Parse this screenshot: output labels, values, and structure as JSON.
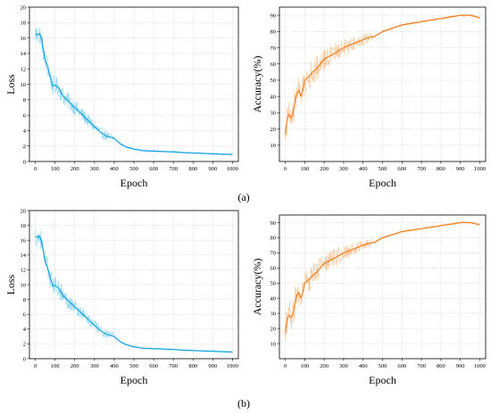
{
  "figure": {
    "panel_labels": [
      "(a)",
      "(b)"
    ]
  },
  "colors": {
    "loss": "#0b9ee3",
    "loss_light": "#8fd6f5",
    "accuracy": "#f07a18",
    "accuracy_light": "#fbc79a",
    "grid": "#c8c8c8"
  },
  "chart_data": [
    {
      "id": "a-loss",
      "type": "line",
      "xlabel": "Epoch",
      "ylabel": "Loss",
      "xlim": [
        -30,
        1030
      ],
      "ylim": [
        0,
        20
      ],
      "xticks": [
        0,
        100,
        200,
        300,
        400,
        500,
        600,
        700,
        800,
        900,
        1000
      ],
      "yticks": [
        0,
        2,
        4,
        6,
        8,
        10,
        12,
        14,
        16,
        18,
        20
      ],
      "grid": true,
      "series": [
        {
          "role": "smoothed",
          "x": [
            0,
            10,
            20,
            30,
            40,
            50,
            60,
            70,
            80,
            90,
            100,
            120,
            140,
            160,
            180,
            200,
            220,
            240,
            260,
            280,
            300,
            330,
            360,
            400,
            430,
            460,
            500,
            550,
            600,
            650,
            700,
            750,
            800,
            850,
            900,
            950,
            1000
          ],
          "values": [
            16.5,
            16.4,
            16.6,
            16.0,
            14.5,
            13.0,
            12.5,
            11.5,
            10.5,
            9.8,
            9.9,
            9.5,
            8.5,
            8.0,
            7.5,
            7.0,
            6.5,
            6.0,
            5.5,
            5.0,
            4.5,
            3.8,
            3.3,
            3.0,
            2.3,
            1.9,
            1.6,
            1.4,
            1.35,
            1.3,
            1.25,
            1.15,
            1.1,
            1.05,
            1.0,
            0.95,
            0.9
          ]
        }
      ]
    },
    {
      "id": "a-acc",
      "type": "line",
      "xlabel": "Epoch",
      "ylabel": "Accuracy(%)",
      "xlim": [
        -30,
        1030
      ],
      "ylim": [
        0,
        95
      ],
      "xticks": [
        0,
        100,
        200,
        300,
        400,
        500,
        600,
        700,
        800,
        900,
        1000
      ],
      "yticks": [
        10,
        20,
        30,
        40,
        50,
        60,
        70,
        80,
        90
      ],
      "grid": true,
      "series": [
        {
          "role": "smoothed",
          "x": [
            0,
            10,
            20,
            30,
            40,
            50,
            60,
            70,
            80,
            90,
            100,
            120,
            140,
            160,
            180,
            200,
            230,
            260,
            300,
            340,
            380,
            420,
            460,
            500,
            550,
            600,
            650,
            700,
            750,
            800,
            850,
            900,
            950,
            1000
          ],
          "values": [
            17,
            26,
            29,
            27,
            30,
            37,
            42,
            44,
            40,
            44,
            50,
            52,
            55,
            57,
            60,
            63,
            65,
            67,
            70,
            72,
            74,
            76,
            77,
            80,
            82,
            84,
            85,
            86,
            87,
            88,
            89,
            90,
            90,
            88.5
          ]
        }
      ]
    },
    {
      "id": "b-loss",
      "type": "line",
      "xlabel": "Epoch",
      "ylabel": "Loss",
      "xlim": [
        -30,
        1030
      ],
      "ylim": [
        0,
        20
      ],
      "xticks": [
        0,
        100,
        200,
        300,
        400,
        500,
        600,
        700,
        800,
        900,
        1000
      ],
      "yticks": [
        0,
        2,
        4,
        6,
        8,
        10,
        12,
        14,
        16,
        18,
        20
      ],
      "grid": true,
      "series": [
        {
          "role": "smoothed",
          "x": [
            0,
            10,
            20,
            30,
            40,
            50,
            60,
            70,
            80,
            90,
            100,
            120,
            140,
            160,
            180,
            200,
            220,
            240,
            260,
            280,
            300,
            330,
            360,
            400,
            430,
            460,
            500,
            550,
            600,
            650,
            700,
            750,
            800,
            850,
            900,
            950,
            1000
          ],
          "values": [
            16.5,
            16.4,
            16.6,
            16.0,
            14.5,
            13.0,
            12.5,
            11.5,
            10.5,
            9.8,
            9.9,
            9.5,
            8.5,
            8.0,
            7.5,
            7.0,
            6.5,
            6.0,
            5.5,
            5.0,
            4.5,
            3.8,
            3.3,
            3.0,
            2.3,
            1.9,
            1.6,
            1.4,
            1.35,
            1.3,
            1.25,
            1.15,
            1.1,
            1.05,
            1.0,
            0.95,
            0.9
          ]
        }
      ]
    },
    {
      "id": "b-acc",
      "type": "line",
      "xlabel": "Epoch",
      "ylabel": "Accuracy(%)",
      "xlim": [
        -30,
        1030
      ],
      "ylim": [
        0,
        95
      ],
      "xticks": [
        0,
        100,
        200,
        300,
        400,
        500,
        600,
        700,
        800,
        900,
        1000
      ],
      "yticks": [
        10,
        20,
        30,
        40,
        50,
        60,
        70,
        80,
        90
      ],
      "grid": true,
      "series": [
        {
          "role": "smoothed",
          "x": [
            0,
            10,
            20,
            30,
            40,
            50,
            60,
            70,
            80,
            90,
            100,
            120,
            140,
            160,
            180,
            200,
            230,
            260,
            300,
            340,
            380,
            420,
            460,
            500,
            550,
            600,
            650,
            700,
            750,
            800,
            850,
            900,
            950,
            1000
          ],
          "values": [
            17,
            26,
            29,
            27,
            30,
            37,
            42,
            44,
            40,
            44,
            50,
            52,
            55,
            57,
            60,
            63,
            65,
            67,
            70,
            72,
            74,
            76,
            77,
            80,
            82,
            84,
            85,
            86,
            87,
            88,
            89,
            90,
            90,
            88.5
          ]
        }
      ]
    }
  ]
}
